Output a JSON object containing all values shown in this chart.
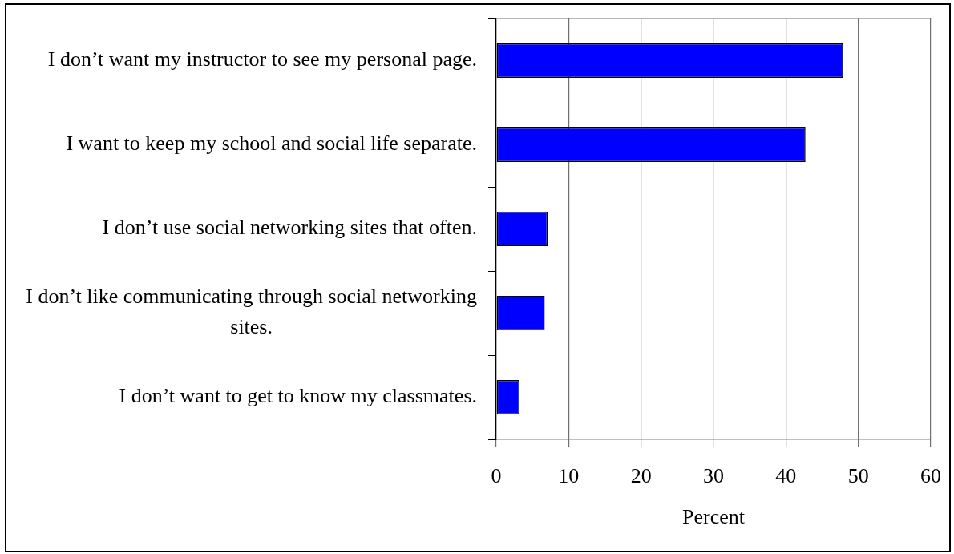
{
  "chart_data": {
    "type": "bar",
    "orientation": "horizontal",
    "categories": [
      "I don’t want my instructor to see my personal page.",
      "I want to keep my school and social life separate.",
      "I don’t use social networking sites that often.",
      "I don’t like communicating through social networking sites.",
      "I don’t want to get to know my classmates."
    ],
    "values": [
      47.9,
      42.7,
      7.1,
      6.7,
      3.2
    ],
    "color": "#0000ff",
    "xlabel": "Percent",
    "xlim": [
      0,
      60
    ],
    "xticks": [
      0,
      10,
      20,
      30,
      40,
      50,
      60
    ],
    "grid": "x"
  }
}
